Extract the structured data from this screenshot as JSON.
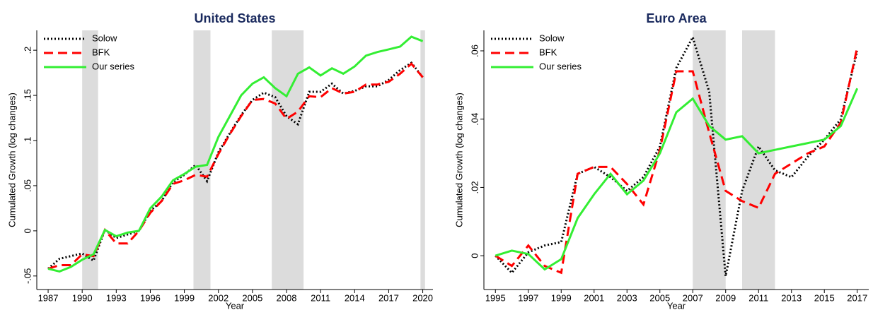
{
  "chart_data": [
    {
      "type": "line",
      "title": "United States",
      "x_label": "Year",
      "y_label": "Cumulated Growth (log changes)",
      "x": [
        1987,
        1988,
        1989,
        1990,
        1991,
        1992,
        1993,
        1994,
        1995,
        1996,
        1997,
        1998,
        1999,
        2000,
        2001,
        2002,
        2003,
        2004,
        2005,
        2006,
        2007,
        2008,
        2009,
        2010,
        2011,
        2012,
        2013,
        2014,
        2015,
        2016,
        2017,
        2018,
        2019,
        2020
      ],
      "series": [
        {
          "name": "Solow",
          "color": "#000000",
          "style": "dotted",
          "values": [
            -0.042,
            -0.031,
            -0.028,
            -0.025,
            -0.033,
            0.001,
            -0.008,
            -0.004,
            0.0,
            0.022,
            0.033,
            0.054,
            0.062,
            0.073,
            0.055,
            0.087,
            0.108,
            0.128,
            0.145,
            0.153,
            0.148,
            0.127,
            0.118,
            0.154,
            0.154,
            0.163,
            0.152,
            0.155,
            0.16,
            0.16,
            0.167,
            0.178,
            0.186,
            0.17
          ]
        },
        {
          "name": "BFK",
          "color": "#ff0000",
          "style": "dashed",
          "values": [
            -0.042,
            -0.038,
            -0.038,
            -0.026,
            -0.028,
            0.001,
            -0.014,
            -0.014,
            0.0,
            0.02,
            0.033,
            0.052,
            0.056,
            0.062,
            0.06,
            0.085,
            0.107,
            0.127,
            0.145,
            0.146,
            0.141,
            0.124,
            0.132,
            0.149,
            0.148,
            0.158,
            0.152,
            0.154,
            0.162,
            0.162,
            0.165,
            0.174,
            0.185,
            0.17
          ]
        },
        {
          "name": "Our series",
          "color": "#33ee33",
          "style": "solid",
          "values": [
            -0.042,
            -0.045,
            -0.04,
            -0.032,
            -0.026,
            0.001,
            -0.006,
            -0.002,
            0.0,
            0.025,
            0.038,
            0.056,
            0.063,
            0.071,
            0.073,
            0.104,
            0.127,
            0.15,
            0.163,
            0.17,
            0.158,
            0.149,
            0.174,
            0.181,
            0.172,
            0.18,
            0.174,
            0.182,
            0.194,
            0.198,
            0.201,
            0.204,
            0.215,
            0.21
          ]
        }
      ],
      "shaded": [
        [
          1990,
          1991.4
        ],
        [
          1999.8,
          2001.3
        ],
        [
          2006.7,
          2009.5
        ],
        [
          2019.8,
          2020.2
        ]
      ],
      "shade_color": "#dcdcdc",
      "xlim": [
        1986,
        2020.9
      ],
      "xticks": [
        1987,
        1990,
        1993,
        1996,
        1999,
        2002,
        2005,
        2008,
        2011,
        2014,
        2017,
        2020
      ],
      "ylim": [
        -0.065,
        0.222
      ],
      "yticks": [
        {
          "value": -0.05,
          "label": "-.05"
        },
        0,
        {
          "value": 0.05,
          "label": ".05"
        },
        {
          "value": 0.1,
          "label": ".1"
        },
        {
          "value": 0.15,
          "label": ".15"
        },
        {
          "value": 0.2,
          "label": ".2"
        }
      ],
      "legend": "upper left"
    },
    {
      "type": "line",
      "title": "Euro Area",
      "x_label": "Year",
      "y_label": "Cumulated Growth (log changes)",
      "x": [
        1995,
        1996,
        1997,
        1998,
        1999,
        2000,
        2001,
        2002,
        2003,
        2004,
        2005,
        2006,
        2007,
        2008,
        2009,
        2010,
        2011,
        2012,
        2013,
        2014,
        2015,
        2016,
        2017
      ],
      "series": [
        {
          "name": "Solow",
          "color": "#000000",
          "style": "dotted",
          "values": [
            0,
            -0.005,
            0.001,
            0.003,
            0.004,
            0.024,
            0.026,
            0.023,
            0.019,
            0.023,
            0.032,
            0.055,
            0.064,
            0.048,
            -0.006,
            0.019,
            0.032,
            0.025,
            0.023,
            0.029,
            0.034,
            0.04,
            0.06
          ]
        },
        {
          "name": "BFK",
          "color": "#ff0000",
          "style": "dashed",
          "values": [
            0,
            -0.003,
            0.003,
            -0.003,
            -0.005,
            0.024,
            0.026,
            0.026,
            0.021,
            0.015,
            0.031,
            0.054,
            0.054,
            0.036,
            0.019,
            0.016,
            0.014,
            0.024,
            0.027,
            0.03,
            0.032,
            0.039,
            0.061
          ]
        },
        {
          "name": "Our series",
          "color": "#33ee33",
          "style": "solid",
          "values": [
            0,
            0.0015,
            0.0005,
            -0.004,
            -0.001,
            0.011,
            0.018,
            0.024,
            0.018,
            0.022,
            0.03,
            0.042,
            0.046,
            0.038,
            0.034,
            0.035,
            0.03,
            0.031,
            0.032,
            0.033,
            0.034,
            0.038,
            0.049
          ]
        }
      ],
      "shaded": [
        [
          2007,
          2009
        ],
        [
          2010,
          2012
        ]
      ],
      "shade_color": "#dcdcdc",
      "xlim": [
        1994.3,
        2017.7
      ],
      "xticks": [
        1995,
        1997,
        1999,
        2001,
        2003,
        2005,
        2007,
        2009,
        2011,
        2013,
        2015,
        2017
      ],
      "ylim": [
        -0.0099,
        0.066
      ],
      "yticks": [
        0,
        {
          "value": 0.02,
          "label": ".02"
        },
        {
          "value": 0.04,
          "label": ".04"
        },
        {
          "value": 0.06,
          "label": ".06"
        }
      ],
      "legend": "upper left"
    }
  ]
}
